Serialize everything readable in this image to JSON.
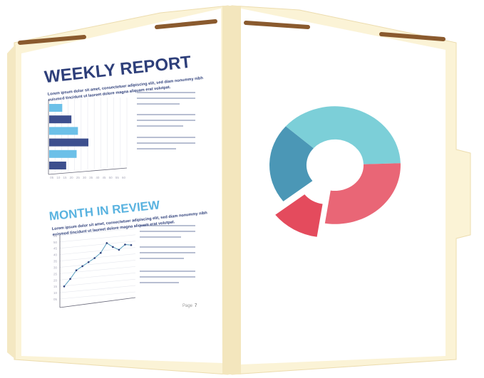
{
  "left_page": {
    "title": "WEEKLY REPORT",
    "intro_line1": "Lorem ipsum dolor sit amet, consectetuer adipiscing elit, sed diam nonummy nibh",
    "intro_line2": "euismod tincidunt ut laoreet dolore magna aliquam erat volutpat.",
    "section2_title": "MONTH IN REVIEW",
    "section2_line1": "Lorem ipsum dolor sit amet, consectetuer adipiscing elit, sed diam nonummy nibh",
    "section2_line2": "euismod tincidunt ut laoreet dolore magna aliquam erat volutpat.",
    "page_label": "Page",
    "page_number": "7"
  },
  "bar_chart": {
    "type": "bar",
    "orientation": "horizontal",
    "x_ticks": [
      "05",
      "10",
      "15",
      "20",
      "25",
      "30",
      "35",
      "40",
      "45",
      "50",
      "55",
      "60"
    ],
    "values": [
      10,
      17,
      22,
      30,
      21,
      13
    ],
    "colors": [
      "#6cc0e8",
      "#3d4f8e",
      "#6cc0e8",
      "#3d4f8e",
      "#6cc0e8",
      "#3d4f8e"
    ]
  },
  "line_chart": {
    "type": "line",
    "y_ticks": [
      "05",
      "10",
      "15",
      "20",
      "25",
      "30",
      "35",
      "40",
      "45",
      "50",
      "55"
    ],
    "values": [
      16,
      22,
      29,
      32,
      35,
      38,
      42,
      50,
      46,
      43,
      47,
      46
    ],
    "color": "#5a9fc0"
  },
  "donut_chart": {
    "type": "pie",
    "values": [
      22,
      38,
      28,
      12
    ],
    "colors": [
      "#4b97b6",
      "#7ccfd8",
      "#e96676",
      "#e44b5d"
    ],
    "exploded_index": 3
  },
  "colors": {
    "folder": "#fbf3d6",
    "folder_shadow": "#efe3bb",
    "fastener": "#8a5a2e",
    "title_dark": "#2e3f7a",
    "title_light": "#5ab3e0"
  }
}
